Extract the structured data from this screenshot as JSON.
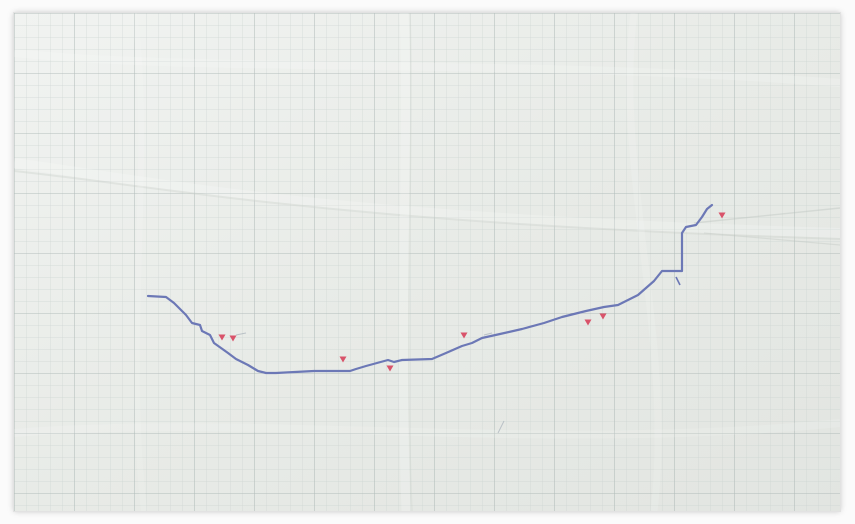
{
  "scene": {
    "subject": "graph-paper-drawing",
    "colors": {
      "paper": "#e9ece8",
      "paper_shadow": "#d9ddd8",
      "grid_minor": "#c9d2cf",
      "grid_major": "#a9b5b3",
      "line": "#6c78b6",
      "marker": "#d9536a",
      "border_shadow": "#9a9a9a"
    },
    "line_icon": "hand-drawn-line",
    "marker_icon": "triangle-marker-icon"
  }
}
